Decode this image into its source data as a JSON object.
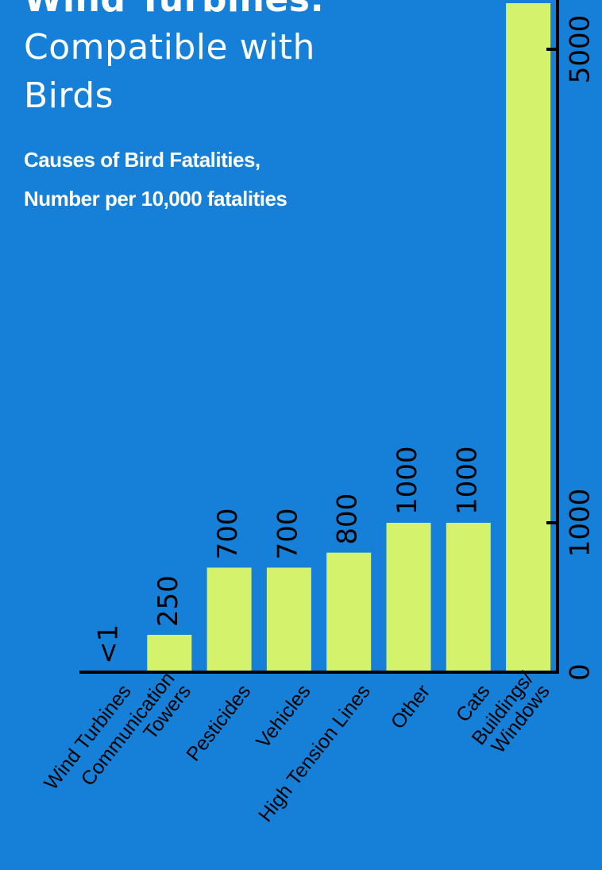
{
  "title": {
    "line1": "Wind Turbines:",
    "line2": "Compatible with",
    "line3": "Birds"
  },
  "subtitle": {
    "line1": "Causes of Bird Fatalities,",
    "line2": "Number per 10,000 fatalities"
  },
  "colors": {
    "background": "#1680D8",
    "bar": "#D4F26B",
    "axis": "#000000",
    "text": "#ffffff"
  },
  "chart_data": {
    "type": "bar",
    "title": "Wind Turbines: Compatible with Birds",
    "subtitle": "Causes of Bird Fatalities, Number per 10,000 fatalities",
    "categories": [
      "Wind Turbines",
      "Communication Towers",
      "Pesticides",
      "Vehicles",
      "High Tension Lines",
      "Other",
      "Cats",
      "Buildings/ Windows"
    ],
    "category_lines": [
      [
        "Wind Turbines"
      ],
      [
        "Communication",
        "Towers"
      ],
      [
        "Pesticides"
      ],
      [
        "Vehicles"
      ],
      [
        "High Tension Lines"
      ],
      [
        "Other"
      ],
      [
        "Cats"
      ],
      [
        "Buildings/",
        "Windows"
      ]
    ],
    "values": [
      0.5,
      250,
      700,
      700,
      800,
      1000,
      1000,
      5500
    ],
    "value_labels": [
      "<1",
      "250",
      "700",
      "700",
      "800",
      "1000",
      "1000",
      ""
    ],
    "y_axis": {
      "position": "right",
      "scale": "piecewise-linear",
      "ticks": [
        0,
        1000,
        5000
      ],
      "tick_labels": [
        "0",
        "1000",
        "5000"
      ],
      "range": [
        0,
        5500
      ]
    },
    "grid": false,
    "legend": "none"
  }
}
